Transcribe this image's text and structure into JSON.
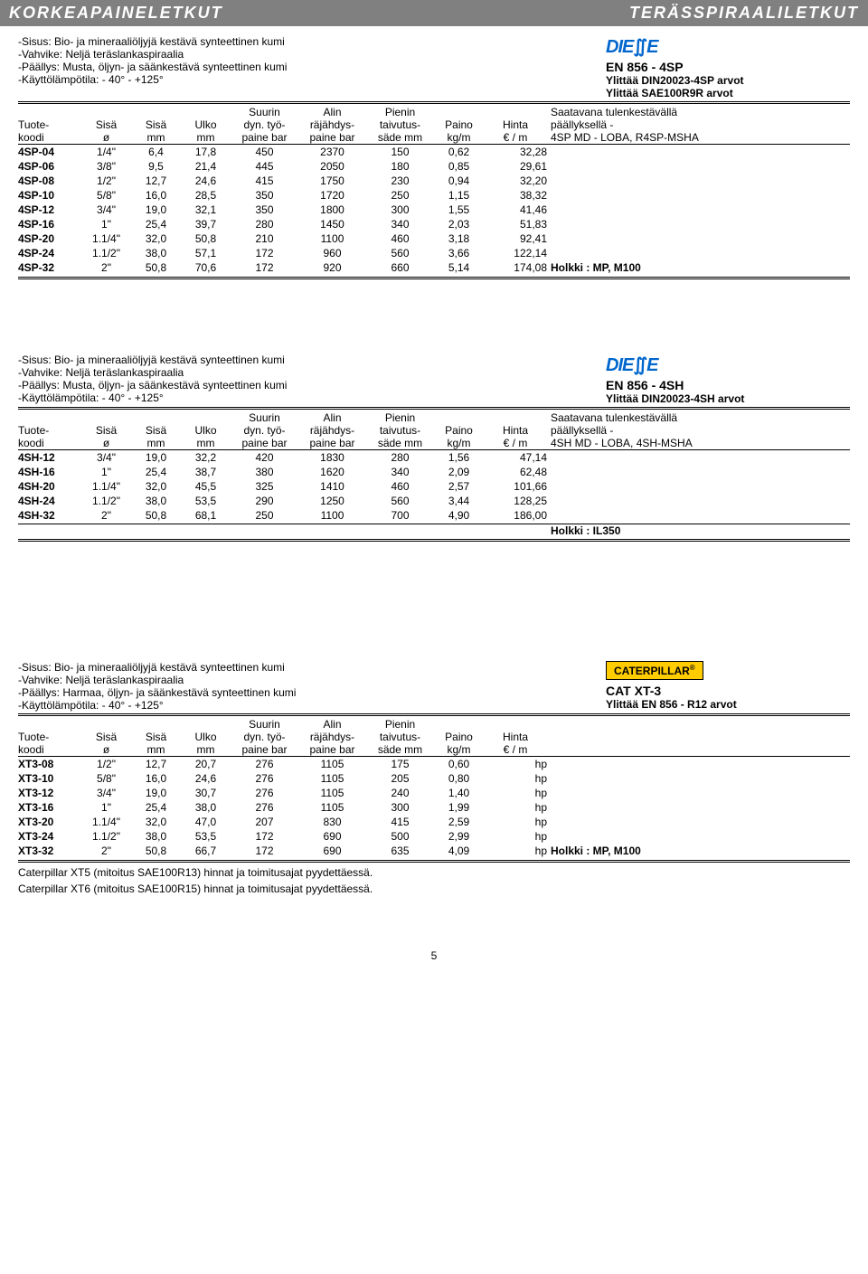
{
  "banner": {
    "left": "KORKEAPAINELETKUT",
    "right": "TERÄSSPIRAALILETKUT"
  },
  "common": {
    "desc_sisus": "-Sisus: Bio- ja mineraaliöljyjä kestävä synteettinen kumi",
    "desc_vahvike": "-Vahvike: Neljä teräslankaspiraalia",
    "desc_lampo": "-Käyttölämpötila: - 40° - +125°",
    "hdr_suurin": "Suurin",
    "hdr_alin": "Alin",
    "hdr_pienin": "Pienin",
    "hdr2_tuote": "Tuote-",
    "hdr2_sisa": "Sisä",
    "hdr2_ulko": "Ulko",
    "hdr2_dyntyo": "dyn. työ-",
    "hdr2_rajahdys": "räjähdys-",
    "hdr2_taivutus": "taivutus-",
    "hdr2_paino": "Paino",
    "hdr2_hinta": "Hinta",
    "hdr3_koodi": "koodi",
    "hdr3_o": "ø",
    "hdr3_mm": "mm",
    "hdr3_painebar": "paine bar",
    "hdr3_sademm": "säde mm",
    "hdr3_kgm": "kg/m",
    "hdr3_eurm": "€ / m",
    "saatavana": "Saatavana tulenkestävällä",
    "paallyksella": "päällyksellä -"
  },
  "sec1": {
    "paallys": "-Päällys: Musta, öljyn- ja säänkestävä synteettinen kumi",
    "std": "EN 856 - 4SP",
    "yl1": "Ylittää DIN20023-4SP arvot",
    "yl2": "Ylittää SAE100R9R arvot",
    "r13": "4SP MD - LOBA, R4SP-MSHA",
    "holkki": "Holkki : MP, M100",
    "rows": [
      {
        "c": "4SP-04",
        "s": "1/4\"",
        "si": "6,4",
        "uo": "17,8",
        "dp": "450",
        "rp": "2370",
        "ts": "150",
        "p": "0,62",
        "h": "32,28"
      },
      {
        "c": "4SP-06",
        "s": "3/8\"",
        "si": "9,5",
        "uo": "21,4",
        "dp": "445",
        "rp": "2050",
        "ts": "180",
        "p": "0,85",
        "h": "29,61"
      },
      {
        "c": "4SP-08",
        "s": "1/2\"",
        "si": "12,7",
        "uo": "24,6",
        "dp": "415",
        "rp": "1750",
        "ts": "230",
        "p": "0,94",
        "h": "32,20"
      },
      {
        "c": "4SP-10",
        "s": "5/8\"",
        "si": "16,0",
        "uo": "28,5",
        "dp": "350",
        "rp": "1720",
        "ts": "250",
        "p": "1,15",
        "h": "38,32"
      },
      {
        "c": "4SP-12",
        "s": "3/4\"",
        "si": "19,0",
        "uo": "32,1",
        "dp": "350",
        "rp": "1800",
        "ts": "300",
        "p": "1,55",
        "h": "41,46"
      },
      {
        "c": "4SP-16",
        "s": "1\"",
        "si": "25,4",
        "uo": "39,7",
        "dp": "280",
        "rp": "1450",
        "ts": "340",
        "p": "2,03",
        "h": "51,83"
      },
      {
        "c": "4SP-20",
        "s": "1.1/4\"",
        "si": "32,0",
        "uo": "50,8",
        "dp": "210",
        "rp": "1100",
        "ts": "460",
        "p": "3,18",
        "h": "92,41"
      },
      {
        "c": "4SP-24",
        "s": "1.1/2\"",
        "si": "38,0",
        "uo": "57,1",
        "dp": "172",
        "rp": "960",
        "ts": "560",
        "p": "3,66",
        "h": "122,14"
      },
      {
        "c": "4SP-32",
        "s": "2\"",
        "si": "50,8",
        "uo": "70,6",
        "dp": "172",
        "rp": "920",
        "ts": "660",
        "p": "5,14",
        "h": "174,08"
      }
    ]
  },
  "sec2": {
    "paallys": "-Päällys: Musta, öljyn- ja säänkestävä synteettinen kumi",
    "std": "EN 856 - 4SH",
    "yl1": "Ylittää DIN20023-4SH arvot",
    "r13": "4SH MD - LOBA, 4SH-MSHA",
    "holkki": "Holkki : IL350",
    "rows": [
      {
        "c": "4SH-12",
        "s": "3/4\"",
        "si": "19,0",
        "uo": "32,2",
        "dp": "420",
        "rp": "1830",
        "ts": "280",
        "p": "1,56",
        "h": "47,14"
      },
      {
        "c": "4SH-16",
        "s": "1\"",
        "si": "25,4",
        "uo": "38,7",
        "dp": "380",
        "rp": "1620",
        "ts": "340",
        "p": "2,09",
        "h": "62,48"
      },
      {
        "c": "4SH-20",
        "s": "1.1/4\"",
        "si": "32,0",
        "uo": "45,5",
        "dp": "325",
        "rp": "1410",
        "ts": "460",
        "p": "2,57",
        "h": "101,66"
      },
      {
        "c": "4SH-24",
        "s": "1.1/2\"",
        "si": "38,0",
        "uo": "53,5",
        "dp": "290",
        "rp": "1250",
        "ts": "560",
        "p": "3,44",
        "h": "128,25"
      },
      {
        "c": "4SH-32",
        "s": "2\"",
        "si": "50,8",
        "uo": "68,1",
        "dp": "250",
        "rp": "1100",
        "ts": "700",
        "p": "4,90",
        "h": "186,00"
      }
    ]
  },
  "sec3": {
    "paallys": "-Päällys: Harmaa, öljyn- ja säänkestävä synteettinen kumi",
    "std": "CAT XT-3",
    "yl1": "Ylittää EN 856 - R12 arvot",
    "holkki": "Holkki : MP, M100",
    "note1": "Caterpillar XT5 (mitoitus SAE100R13) hinnat ja toimitusajat pyydettäessä.",
    "note2": "Caterpillar XT6 (mitoitus SAE100R15) hinnat ja toimitusajat pyydettäessä.",
    "rows": [
      {
        "c": "XT3-08",
        "s": "1/2\"",
        "si": "12,7",
        "uo": "20,7",
        "dp": "276",
        "rp": "1105",
        "ts": "175",
        "p": "0,60",
        "h": "hp"
      },
      {
        "c": "XT3-10",
        "s": "5/8\"",
        "si": "16,0",
        "uo": "24,6",
        "dp": "276",
        "rp": "1105",
        "ts": "205",
        "p": "0,80",
        "h": "hp"
      },
      {
        "c": "XT3-12",
        "s": "3/4\"",
        "si": "19,0",
        "uo": "30,7",
        "dp": "276",
        "rp": "1105",
        "ts": "240",
        "p": "1,40",
        "h": "hp"
      },
      {
        "c": "XT3-16",
        "s": "1\"",
        "si": "25,4",
        "uo": "38,0",
        "dp": "276",
        "rp": "1105",
        "ts": "300",
        "p": "1,99",
        "h": "hp"
      },
      {
        "c": "XT3-20",
        "s": "1.1/4\"",
        "si": "32,0",
        "uo": "47,0",
        "dp": "207",
        "rp": "830",
        "ts": "415",
        "p": "2,59",
        "h": "hp"
      },
      {
        "c": "XT3-24",
        "s": "1.1/2\"",
        "si": "38,0",
        "uo": "53,5",
        "dp": "172",
        "rp": "690",
        "ts": "500",
        "p": "2,99",
        "h": "hp"
      },
      {
        "c": "XT3-32",
        "s": "2\"",
        "si": "50,8",
        "uo": "66,7",
        "dp": "172",
        "rp": "690",
        "ts": "635",
        "p": "4,09",
        "h": "hp"
      }
    ]
  },
  "page_num": "5",
  "colors": {
    "banner_bg": "#808080",
    "banner_fg": "#ffffff",
    "diesse": "#0066cc",
    "cat_bg": "#ffcc00"
  }
}
